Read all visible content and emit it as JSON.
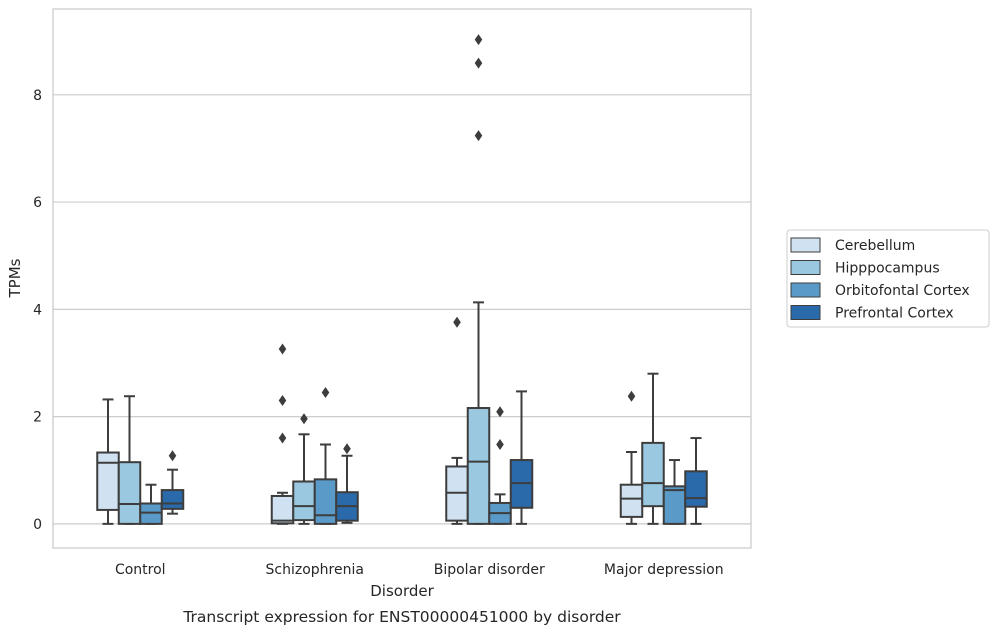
{
  "caption": "Transcript expression for ENST00000451000 by disorder",
  "chart_data": {
    "type": "box",
    "title": "",
    "xlabel": "Disorder",
    "ylabel": "TPMs",
    "ylim": [
      -0.45,
      9.6
    ],
    "yticks": [
      "0",
      "2",
      "4",
      "6",
      "8"
    ],
    "ytick_values": [
      0,
      2,
      4,
      6,
      8
    ],
    "grid": "horizontal",
    "legend_position": "right",
    "categories": [
      "Control",
      "Schizophrenia",
      "Bipolar disorder",
      "Major depression"
    ],
    "series": [
      {
        "name": "Cerebellum",
        "color": "#d0e1f2",
        "boxes": [
          {
            "whislo": 0.0,
            "q1": 0.26,
            "med": 1.14,
            "q3": 1.33,
            "whishi": 2.32,
            "fliers": []
          },
          {
            "whislo": 0.0,
            "q1": 0.01,
            "med": 0.06,
            "q3": 0.52,
            "whishi": 0.58,
            "fliers": [
              1.6,
              2.3,
              3.26
            ]
          },
          {
            "whislo": 0.0,
            "q1": 0.06,
            "med": 0.58,
            "q3": 1.07,
            "whishi": 1.23,
            "fliers": [
              3.76
            ]
          },
          {
            "whislo": 0.0,
            "q1": 0.13,
            "med": 0.47,
            "q3": 0.73,
            "whishi": 1.34,
            "fliers": [
              2.38
            ]
          }
        ]
      },
      {
        "name": "Hipppocampus",
        "color": "#9ac8e0",
        "boxes": [
          {
            "whislo": 0.0,
            "q1": 0.0,
            "med": 0.37,
            "q3": 1.15,
            "whishi": 2.38,
            "fliers": []
          },
          {
            "whislo": 0.0,
            "q1": 0.07,
            "med": 0.33,
            "q3": 0.79,
            "whishi": 1.67,
            "fliers": [
              1.96
            ]
          },
          {
            "whislo": 0.0,
            "q1": 0.0,
            "med": 1.16,
            "q3": 2.16,
            "whishi": 4.13,
            "fliers": [
              7.24,
              8.59,
              9.03
            ]
          },
          {
            "whislo": 0.0,
            "q1": 0.33,
            "med": 0.76,
            "q3": 1.51,
            "whishi": 2.8,
            "fliers": []
          }
        ]
      },
      {
        "name": "Orbitofontal Cortex",
        "color": "#5a9ac8",
        "boxes": [
          {
            "whislo": 0.0,
            "q1": 0.0,
            "med": 0.21,
            "q3": 0.38,
            "whishi": 0.73,
            "fliers": []
          },
          {
            "whislo": 0.0,
            "q1": 0.0,
            "med": 0.16,
            "q3": 0.83,
            "whishi": 1.48,
            "fliers": [
              2.45
            ]
          },
          {
            "whislo": 0.0,
            "q1": 0.0,
            "med": 0.2,
            "q3": 0.39,
            "whishi": 0.55,
            "fliers": [
              1.48,
              2.09
            ]
          },
          {
            "whislo": 0.0,
            "q1": 0.0,
            "med": 0.63,
            "q3": 0.7,
            "whishi": 1.19,
            "fliers": []
          }
        ]
      },
      {
        "name": "Prefrontal Cortex",
        "color": "#2a6aaa",
        "boxes": [
          {
            "whislo": 0.19,
            "q1": 0.28,
            "med": 0.38,
            "q3": 0.63,
            "whishi": 1.01,
            "fliers": [
              1.27
            ]
          },
          {
            "whislo": 0.02,
            "q1": 0.06,
            "med": 0.33,
            "q3": 0.59,
            "whishi": 1.27,
            "fliers": [
              1.4
            ]
          },
          {
            "whislo": 0.0,
            "q1": 0.3,
            "med": 0.76,
            "q3": 1.19,
            "whishi": 2.47,
            "fliers": []
          },
          {
            "whislo": 0.0,
            "q1": 0.32,
            "med": 0.48,
            "q3": 0.98,
            "whishi": 1.6,
            "fliers": []
          }
        ]
      }
    ]
  }
}
